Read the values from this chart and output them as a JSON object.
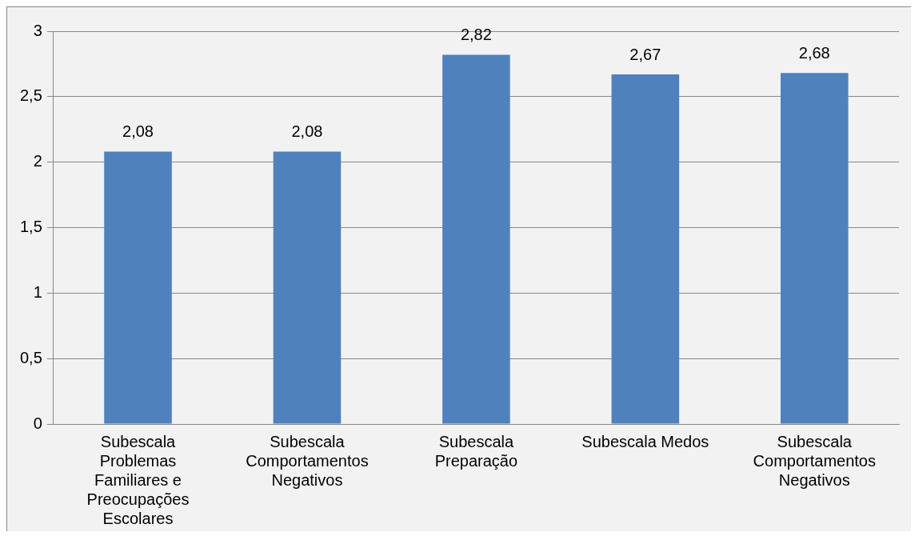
{
  "chart_data": {
    "type": "bar",
    "categories": [
      "Subescala Problemas Familiares e Preocupações Escolares",
      "Subescala Comportamentos Negativos",
      "Subescala Preparação",
      "Subescala Medos",
      "Subescala Comportamentos Negativos"
    ],
    "values": [
      2.08,
      2.08,
      2.82,
      2.67,
      2.68
    ],
    "value_labels": [
      "2,08",
      "2,08",
      "2,82",
      "2,67",
      "2,68"
    ],
    "color": "#4f81bd",
    "ylim": [
      0,
      3
    ],
    "yticks": [
      0,
      {
        "value": 0.5,
        "label": "0,5"
      },
      1,
      {
        "value": 1.5,
        "label": "1,5"
      },
      2,
      {
        "value": 2.5,
        "label": "2,5"
      },
      3
    ],
    "grid": "y",
    "legend": false
  }
}
